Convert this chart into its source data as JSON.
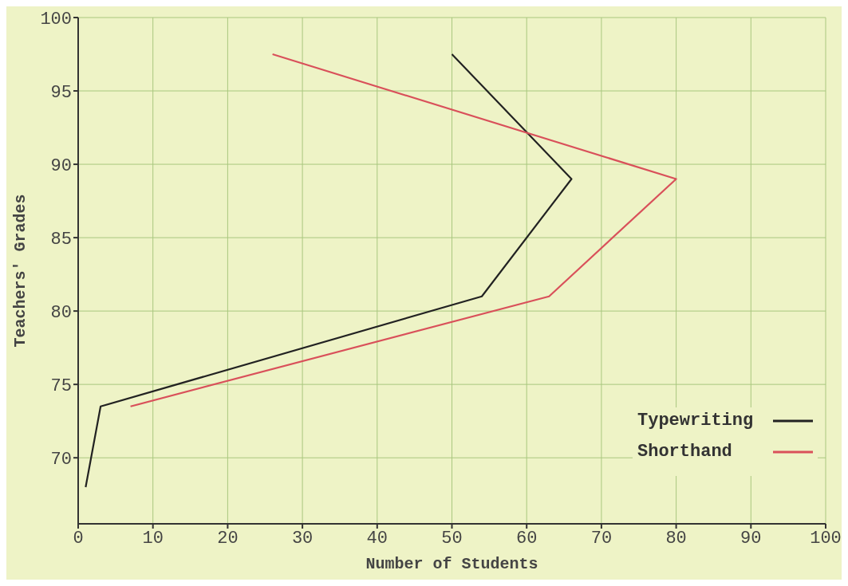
{
  "chart_data": {
    "type": "line",
    "xlabel": "Number of Students",
    "ylabel": "Teachers' Grades",
    "xlim": [
      0,
      100
    ],
    "xticks": [
      0,
      10,
      20,
      30,
      40,
      50,
      60,
      70,
      80,
      90,
      100
    ],
    "ylim": [
      65.5,
      100
    ],
    "yticks": [
      70,
      75,
      80,
      85,
      90,
      95,
      100
    ],
    "grid": true,
    "legend": "bottom right",
    "marker": "none",
    "line_style": "solid",
    "series": [
      {
        "name": "Typewriting",
        "color": "#222222",
        "x": [
          50,
          66,
          54,
          3,
          1
        ],
        "values": [
          97.5,
          89,
          81,
          73.5,
          68
        ]
      },
      {
        "name": "Shorthand",
        "color": "#d9505a",
        "x": [
          26,
          80,
          63,
          7
        ],
        "values": [
          97.5,
          89,
          81,
          73.5
        ]
      }
    ]
  }
}
